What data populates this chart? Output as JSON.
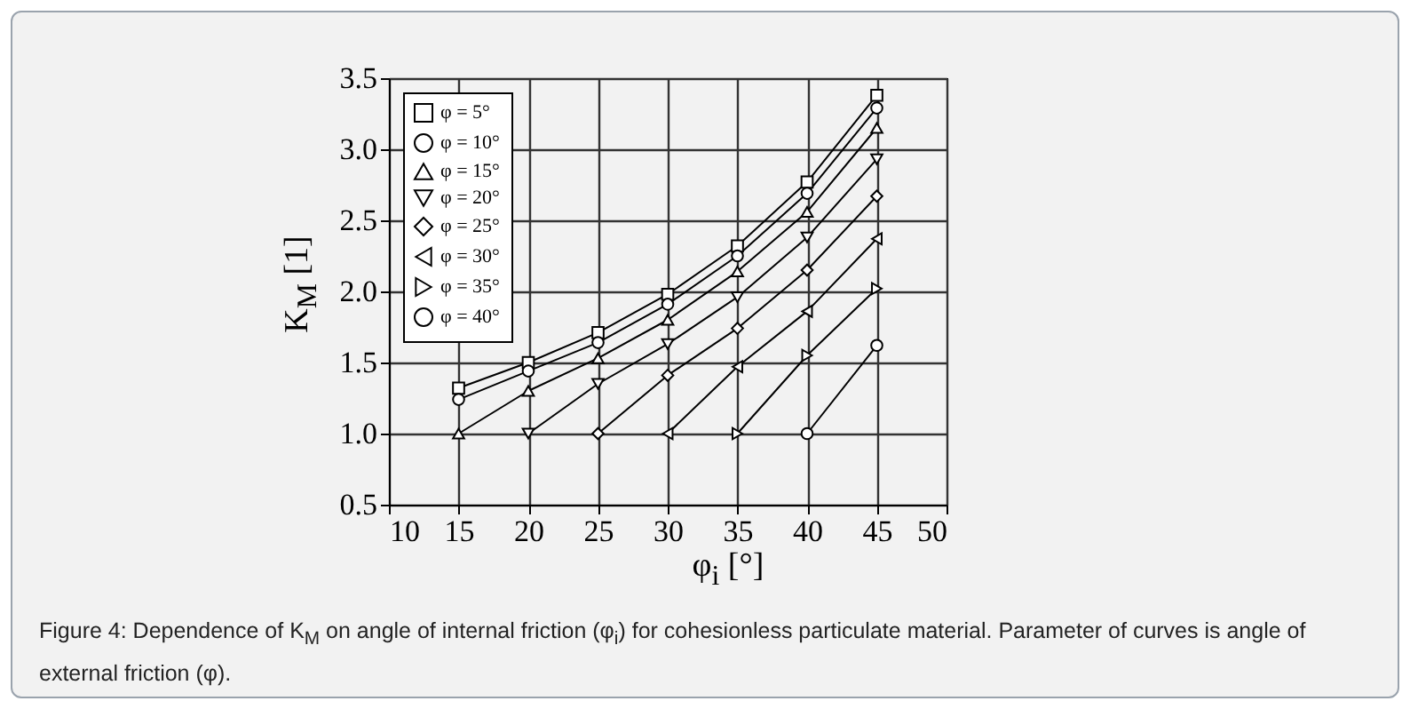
{
  "chart_data": {
    "type": "line",
    "xlabel": "φ$_{i}$ [°]",
    "ylabel": "K$_{M}$ [1]",
    "annotations": [
      "Figure 4: Dependence of K$_{M}$ on angle of internal friction (φ$_{i}$) for cohesionless particulate material. Parameter of curves is angle of external friction (φ)."
    ],
    "x": [
      15,
      20,
      25,
      30,
      35,
      40,
      45
    ],
    "series": [
      {
        "name": "φ = 5°",
        "color": "#000000",
        "marker": "square",
        "values": [
          1.32,
          1.5,
          1.71,
          1.98,
          2.32,
          2.77,
          3.38
        ]
      },
      {
        "name": "φ = 10°",
        "color": "#000000",
        "marker": "circle",
        "values": [
          1.24,
          1.44,
          1.64,
          1.91,
          2.25,
          2.69,
          3.29
        ]
      },
      {
        "name": "φ = 15°",
        "color": "#000000",
        "marker": "triangle-up",
        "values": [
          1.0,
          1.3,
          1.53,
          1.8,
          2.14,
          2.56,
          3.15
        ]
      },
      {
        "name": "φ = 20°",
        "color": "#000000",
        "marker": "triangle-down",
        "values": [
          null,
          1.0,
          1.35,
          1.63,
          1.96,
          2.38,
          2.93
        ]
      },
      {
        "name": "φ = 25°",
        "color": "#000000",
        "marker": "diamond",
        "values": [
          null,
          null,
          1.0,
          1.41,
          1.74,
          2.15,
          2.67
        ]
      },
      {
        "name": "φ = 30°",
        "color": "#000000",
        "marker": "triangle-left",
        "values": [
          null,
          null,
          null,
          1.0,
          1.47,
          1.86,
          2.37
        ]
      },
      {
        "name": "φ = 35°",
        "color": "#000000",
        "marker": "triangle-right",
        "values": [
          null,
          null,
          null,
          null,
          1.0,
          1.55,
          2.02
        ]
      },
      {
        "name": "φ = 40°",
        "color": "#000000",
        "marker": "circle",
        "values": [
          null,
          null,
          null,
          null,
          null,
          1.0,
          1.62
        ]
      }
    ],
    "xlim": [
      10,
      50
    ],
    "xticks": [
      10,
      15,
      20,
      25,
      30,
      35,
      40,
      45,
      50
    ],
    "ylim": [
      0.5,
      3.5
    ],
    "yticks": [
      0.5,
      {
        "value": 1,
        "label": "1.0"
      },
      1.5,
      {
        "value": 2,
        "label": "2.0"
      },
      2.5,
      {
        "value": 3,
        "label": "3.0"
      },
      3.5
    ],
    "grid": true,
    "legend": "top left",
    "line_style": "solid"
  }
}
